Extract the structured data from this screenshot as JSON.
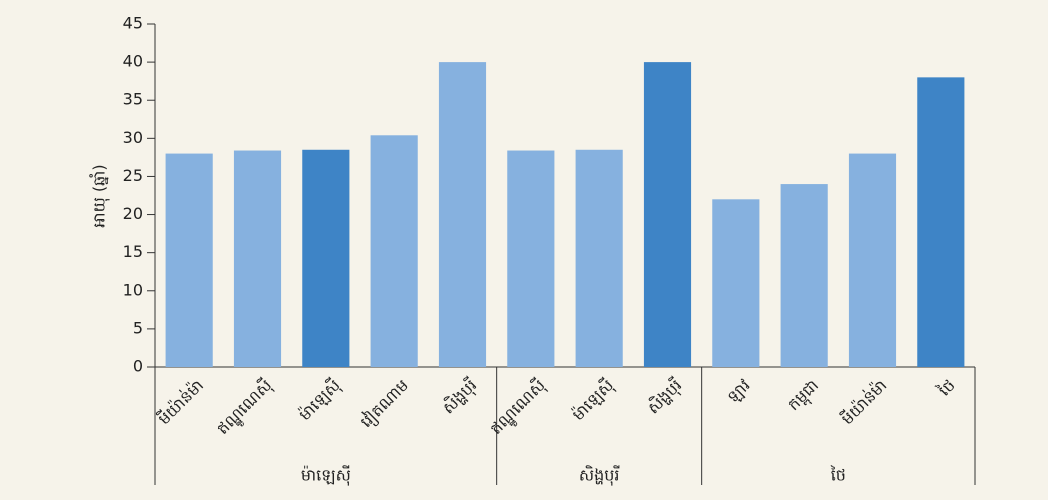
{
  "chart_data": {
    "type": "bar",
    "y_label": "អាយុ (ឆ្នាំ)",
    "groups": [
      {
        "name": "ម៉ាឡេស៊ី",
        "categories": [
          "មីយ៉ាន់ម៉ា",
          "ឥណ្ឌូណេស៊ី",
          "ម៉ាឡេស៊ី",
          "វៀតណាម",
          "សិង្ហបុរី"
        ],
        "values": [
          28,
          28.4,
          28.5,
          30.4,
          40
        ],
        "colors": [
          "#86b1df",
          "#86b1df",
          "#3e84c6",
          "#86b1df",
          "#86b1df"
        ]
      },
      {
        "name": "សិង្ហបុរី",
        "categories": [
          "ឥណ្ឌូណេស៊ី",
          "ម៉ាឡេស៊ី",
          "សិង្ហបុរី"
        ],
        "values": [
          28.4,
          28.5,
          40
        ],
        "colors": [
          "#86b1df",
          "#86b1df",
          "#3e84c6"
        ]
      },
      {
        "name": "ថៃ",
        "categories": [
          "ឡាវ",
          "កម្ពុជា",
          "មីយ៉ាន់ម៉ា",
          "ថៃ"
        ],
        "values": [
          22,
          24,
          28,
          38
        ],
        "colors": [
          "#86b1df",
          "#86b1df",
          "#86b1df",
          "#3e84c6"
        ]
      }
    ],
    "ylim": [
      0,
      45
    ],
    "yticks": [
      0,
      5,
      10,
      15,
      20,
      25,
      30,
      35,
      40,
      45
    ]
  }
}
